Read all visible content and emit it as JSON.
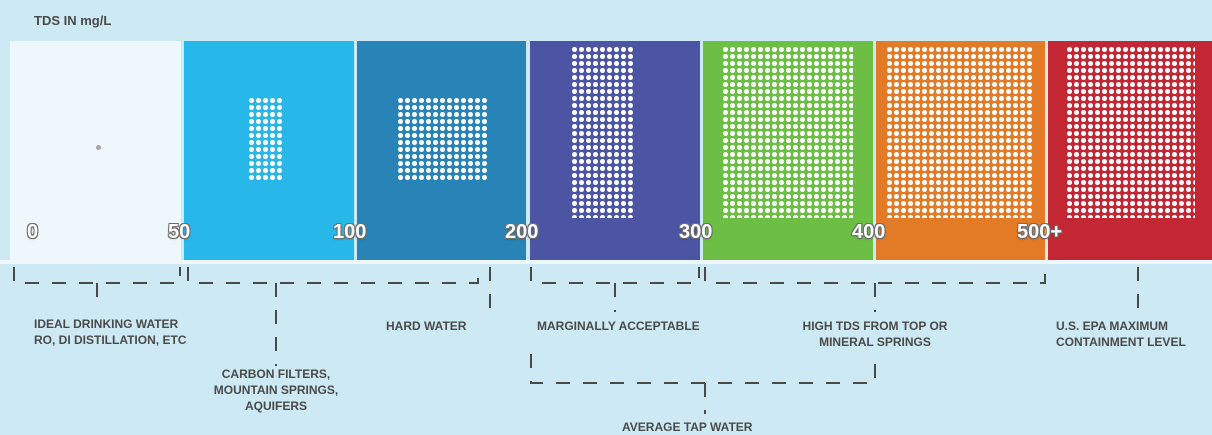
{
  "title": "TDS IN mg/L",
  "chart_data": {
    "type": "tds-scale",
    "unit": "mg/L",
    "segments": [
      {
        "range": "0-50",
        "color": "#eef7fb",
        "dot_color": "#a9a9a9"
      },
      {
        "range": "50-100",
        "color": "#27b7e8",
        "dot_color": "#ffffff"
      },
      {
        "range": "100-200",
        "color": "#2883b6",
        "dot_color": "#ffffff"
      },
      {
        "range": "200-300",
        "color": "#4b55a3",
        "dot_color": "#ffffff"
      },
      {
        "range": "300-400",
        "color": "#6cbf44",
        "dot_color": "#ffffff"
      },
      {
        "range": "400-500",
        "color": "#e37a26",
        "dot_color": "#ffffff"
      },
      {
        "range": "500+",
        "color": "#c42734",
        "dot_color": "#ffffff"
      }
    ],
    "ticks": [
      "0",
      "50",
      "100",
      "200",
      "300",
      "400",
      "500+"
    ]
  },
  "annotations": {
    "ideal_line1": "IDEAL DRINKING WATER",
    "ideal_line2": "RO, DI DISTILLATION, ETC",
    "carbon_line1": "CARBON FILTERS,",
    "carbon_line2": "MOUNTAIN SPRINGS,",
    "carbon_line3": "AQUIFERS",
    "hard": "HARD WATER",
    "marginal": "MARGINALLY ACCEPTABLE",
    "high_line1": "HIGH TDS FROM TOP OR",
    "high_line2": "MINERAL SPRINGS",
    "epa_line1": "U.S. EPA MAXIMUM",
    "epa_line2": "CONTAINMENT LEVEL",
    "tap": "AVERAGE TAP WATER"
  }
}
